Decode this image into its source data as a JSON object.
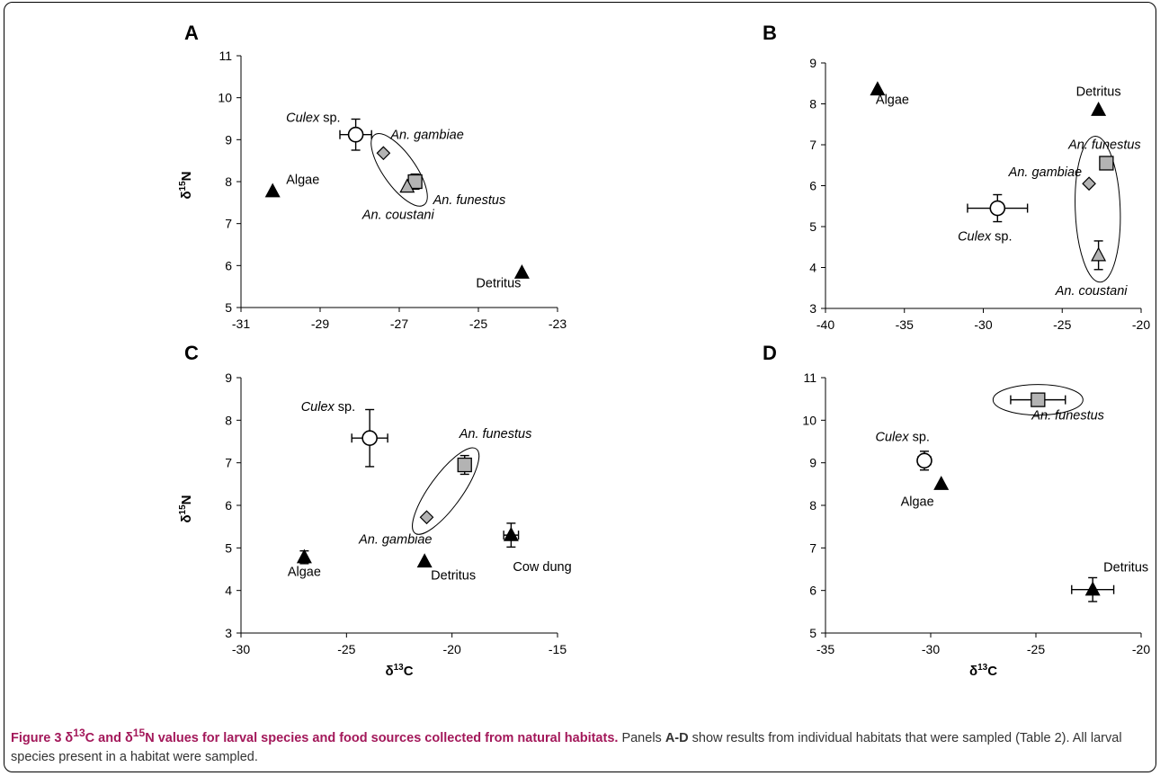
{
  "caption": {
    "lead_1": "Figure 3 δ",
    "lead_sup_1": "13",
    "lead_2": "C and δ",
    "lead_sup_2": "15",
    "lead_3": "N values for larval species and food sources collected from natural habitats.",
    "body_1": " Panels ",
    "body_bold": "A-D",
    "body_2": " show results from individual habitats that were sampled (Table 2). All larval species present in a habitat were sampled."
  },
  "colors": {
    "marker_black": "#000000",
    "marker_grey": "#b3b3b3",
    "marker_white": "#ffffff",
    "axis": "#000000"
  },
  "chart_data": [
    {
      "panel": "A",
      "type": "scatter",
      "xlabel": "",
      "ylabel": "δ15N",
      "xlim": [
        -31,
        -23
      ],
      "ylim": [
        5,
        11
      ],
      "xticks": [
        -31,
        -29,
        -27,
        -25,
        -23
      ],
      "yticks": [
        5,
        6,
        7,
        8,
        9,
        10,
        11
      ],
      "points": [
        {
          "label": "Culex sp.",
          "label_italic": "Culex",
          "label_rest": " sp.",
          "marker": "circle",
          "x": -28.1,
          "y": 9.12,
          "xerr": 0.4,
          "yerr": 0.37
        },
        {
          "label": "An. gambiae",
          "label_italic": "An. gambiae",
          "label_rest": "",
          "marker": "diamond",
          "x": -27.4,
          "y": 8.68,
          "xerr": 0,
          "yerr": 0
        },
        {
          "label": "An. funestus",
          "label_italic": "An. funestus",
          "label_rest": "",
          "marker": "square",
          "x": -26.6,
          "y": 8.0,
          "xerr": 0.15,
          "yerr": 0.18
        },
        {
          "label": "An. coustani",
          "label_italic": "An. coustani",
          "label_rest": "",
          "marker": "triangle-grey",
          "x": -26.8,
          "y": 7.88,
          "xerr": 0,
          "yerr": 0
        },
        {
          "label": "Algae",
          "label_italic": "",
          "label_rest": "Algae",
          "marker": "triangle",
          "x": -30.2,
          "y": 7.77,
          "xerr": 0,
          "yerr": 0
        },
        {
          "label": "Detritus",
          "label_italic": "",
          "label_rest": "Detritus",
          "marker": "triangle",
          "x": -23.9,
          "y": 5.83,
          "xerr": 0,
          "yerr": 0
        }
      ],
      "ellipse_around": [
        "An. gambiae",
        "An. funestus",
        "An. coustani"
      ]
    },
    {
      "panel": "B",
      "type": "scatter",
      "xlabel": "",
      "ylabel": "",
      "xlim": [
        -40,
        -20
      ],
      "ylim": [
        3,
        9
      ],
      "xticks": [
        -40,
        -35,
        -30,
        -25,
        -20
      ],
      "yticks": [
        3,
        4,
        5,
        6,
        7,
        8,
        9
      ],
      "points": [
        {
          "label": "Algae",
          "label_italic": "",
          "label_rest": "Algae",
          "marker": "triangle",
          "x": -36.7,
          "y": 8.35,
          "xerr": 0,
          "yerr": 0
        },
        {
          "label": "Detritus",
          "label_italic": "",
          "label_rest": "Detritus",
          "marker": "triangle",
          "x": -22.7,
          "y": 7.85,
          "xerr": 0,
          "yerr": 0
        },
        {
          "label": "An. funestus",
          "label_italic": "An. funestus",
          "label_rest": "",
          "marker": "square",
          "x": -22.2,
          "y": 6.55,
          "xerr": 0,
          "yerr": 0
        },
        {
          "label": "An. gambiae",
          "label_italic": "An. gambiae",
          "label_rest": "",
          "marker": "diamond",
          "x": -23.3,
          "y": 6.05,
          "xerr": 0,
          "yerr": 0
        },
        {
          "label": "Culex sp.",
          "label_italic": "Culex",
          "label_rest": " sp.",
          "marker": "circle",
          "x": -29.1,
          "y": 5.45,
          "xerr": 1.9,
          "yerr": 0.33
        },
        {
          "label": "An. coustani",
          "label_italic": "An. coustani",
          "label_rest": "",
          "marker": "triangle-grey",
          "x": -22.7,
          "y": 4.3,
          "xerr": 0,
          "yerr": 0.35
        }
      ],
      "ellipse_around": [
        "An. funestus",
        "An. gambiae",
        "An. coustani"
      ]
    },
    {
      "panel": "C",
      "type": "scatter",
      "xlabel": "δ13C",
      "ylabel": "δ15N",
      "xlim": [
        -30,
        -15
      ],
      "ylim": [
        3,
        9
      ],
      "xticks": [
        -30,
        -25,
        -20,
        -15
      ],
      "yticks": [
        3,
        4,
        5,
        6,
        7,
        8,
        9
      ],
      "points": [
        {
          "label": "Culex sp.",
          "label_italic": "Culex",
          "label_rest": " sp.",
          "marker": "circle",
          "x": -23.9,
          "y": 7.58,
          "xerr": 0.85,
          "yerr": 0.67
        },
        {
          "label": "An. funestus",
          "label_italic": "An. funestus",
          "label_rest": "",
          "marker": "square",
          "x": -19.4,
          "y": 6.95,
          "xerr": 0,
          "yerr": 0.22
        },
        {
          "label": "An. gambiae",
          "label_italic": "An. gambiae",
          "label_rest": "",
          "marker": "diamond",
          "x": -21.2,
          "y": 5.72,
          "xerr": 0,
          "yerr": 0
        },
        {
          "label": "Cow dung",
          "label_italic": "",
          "label_rest": "Cow dung",
          "marker": "triangle",
          "x": -17.2,
          "y": 5.3,
          "xerr": 0.35,
          "yerr": 0.28
        },
        {
          "label": "Algae",
          "label_italic": "",
          "label_rest": "Algae",
          "marker": "triangle",
          "x": -27.0,
          "y": 4.78,
          "xerr": 0,
          "yerr": 0.15
        },
        {
          "label": "Detritus",
          "label_italic": "",
          "label_rest": "Detritus",
          "marker": "triangle",
          "x": -21.3,
          "y": 4.68,
          "xerr": 0,
          "yerr": 0
        }
      ],
      "ellipse_around": [
        "An. funestus",
        "An. gambiae"
      ]
    },
    {
      "panel": "D",
      "type": "scatter",
      "xlabel": "δ13C",
      "ylabel": "",
      "xlim": [
        -35,
        -20
      ],
      "ylim": [
        5,
        11
      ],
      "xticks": [
        -35,
        -30,
        -25,
        -20
      ],
      "yticks": [
        5,
        6,
        7,
        8,
        9,
        10,
        11
      ],
      "points": [
        {
          "label": "An. funestus",
          "label_italic": "An. funestus",
          "label_rest": "",
          "marker": "square",
          "x": -24.9,
          "y": 10.48,
          "xerr": 1.3,
          "yerr": 0
        },
        {
          "label": "Culex sp.",
          "label_italic": "Culex",
          "label_rest": " sp.",
          "marker": "circle",
          "x": -30.3,
          "y": 9.05,
          "xerr": 0.3,
          "yerr": 0.22
        },
        {
          "label": "Algae",
          "label_italic": "",
          "label_rest": "Algae",
          "marker": "triangle",
          "x": -29.5,
          "y": 8.5,
          "xerr": 0,
          "yerr": 0
        },
        {
          "label": "Detritus",
          "label_italic": "",
          "label_rest": "Detritus",
          "marker": "triangle",
          "x": -22.3,
          "y": 6.02,
          "xerr": 1.0,
          "yerr": 0.28
        }
      ],
      "ellipse_around": [
        "An. funestus"
      ]
    }
  ]
}
